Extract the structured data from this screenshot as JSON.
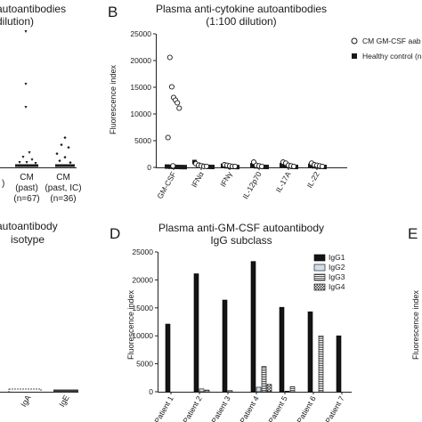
{
  "panel_a": {
    "title_line1": "autoantibodies",
    "title_line2": "dilution)",
    "groups": [
      {
        "line1": "CM",
        "line2": "(past)",
        "line3": "(n=67)"
      },
      {
        "line1": "CM",
        "line2": "(past, IC)",
        "line3": "(n=36)"
      }
    ],
    "left_fragment": ")"
  },
  "panel_b": {
    "letter": "B",
    "title_line1": "Plasma anti-cytokine autoantibodies",
    "title_line2": "(1:100 dilution)",
    "ylabel": "Fluorescence index",
    "yticks": [
      "0",
      "5000",
      "10000",
      "15000",
      "20000",
      "25000"
    ],
    "legend": [
      "CM GM-CSF aab",
      "Healthy control (n"
    ],
    "categories": [
      "GM-CSF",
      "IFNα",
      "IFNγ",
      "IL-12p70",
      "IL-17A",
      "IL-22"
    ]
  },
  "panel_c": {
    "title_line1": "autoantibody",
    "title_line2": "isotype",
    "categories": [
      "IgA",
      "IgE"
    ]
  },
  "panel_d": {
    "letter": "D",
    "title_line1": "Plasma anti-GM-CSF autoantibody",
    "title_line2": "IgG subclass",
    "ylabel": "Fluorescence index",
    "yticks": [
      "0",
      "5000",
      "10000",
      "15000",
      "20000",
      "25000"
    ],
    "legend": [
      "IgG1",
      "IgG2",
      "IgG3",
      "IgG4"
    ],
    "categories": [
      "Patient 1",
      "Patient 2",
      "Patient 3",
      "Patient 4",
      "Patient 5",
      "Patient 6",
      "Patient 7"
    ]
  },
  "panel_e": {
    "letter": "E",
    "ylabel": "Fluorescence index"
  },
  "chart_data": [
    {
      "type": "scatter",
      "title": "Plasma anti-cytokine autoantibodies (1:100 dilution)",
      "ylabel": "Fluorescence index",
      "ylim": [
        0,
        25000
      ],
      "categories": [
        "GM-CSF",
        "IFNα",
        "IFNγ",
        "IL-12p70",
        "IL-17A",
        "IL-22"
      ],
      "series": [
        {
          "name": "CM GM-CSF aab",
          "values": [
            [
              20500,
              15000,
              13000,
              12500,
              12000,
              11000,
              5500,
              200
            ],
            [
              600,
              300,
              200,
              100,
              100
            ],
            [
              400,
              300,
              200,
              100,
              100
            ],
            [
              900,
              300,
              200,
              100
            ],
            [
              900,
              700,
              300,
              200,
              100
            ],
            [
              700,
              400,
              300,
              200,
              100
            ]
          ]
        },
        {
          "name": "Healthy control (n",
          "values": [
            [
              150,
              120,
              100,
              80,
              60,
              50
            ],
            [
              1000,
              500,
              300,
              200,
              100,
              80
            ],
            [
              300,
              200,
              100,
              80,
              60
            ],
            [
              400,
              200,
              150,
              100,
              80
            ],
            [
              400,
              300,
              200,
              100,
              80
            ],
            [
              300,
              200,
              150,
              100,
              80
            ]
          ]
        }
      ]
    },
    {
      "type": "bar",
      "title": "Plasma anti-GM-CSF autoantibody IgG subclass",
      "ylabel": "Fluorescence index",
      "ylim": [
        0,
        25000
      ],
      "categories": [
        "Patient 1",
        "Patient 2",
        "Patient 3",
        "Patient 4",
        "Patient 5",
        "Patient 6",
        "Patient 7"
      ],
      "series": [
        {
          "name": "IgG1",
          "values": [
            12100,
            21100,
            16400,
            23300,
            15100,
            14300,
            10000
          ]
        },
        {
          "name": "IgG2",
          "values": [
            0,
            500,
            200,
            800,
            100,
            0,
            0
          ]
        },
        {
          "name": "IgG3",
          "values": [
            0,
            300,
            0,
            4500,
            900,
            10000,
            0
          ]
        },
        {
          "name": "IgG4",
          "values": [
            0,
            0,
            0,
            1300,
            0,
            0,
            0
          ]
        }
      ]
    }
  ]
}
